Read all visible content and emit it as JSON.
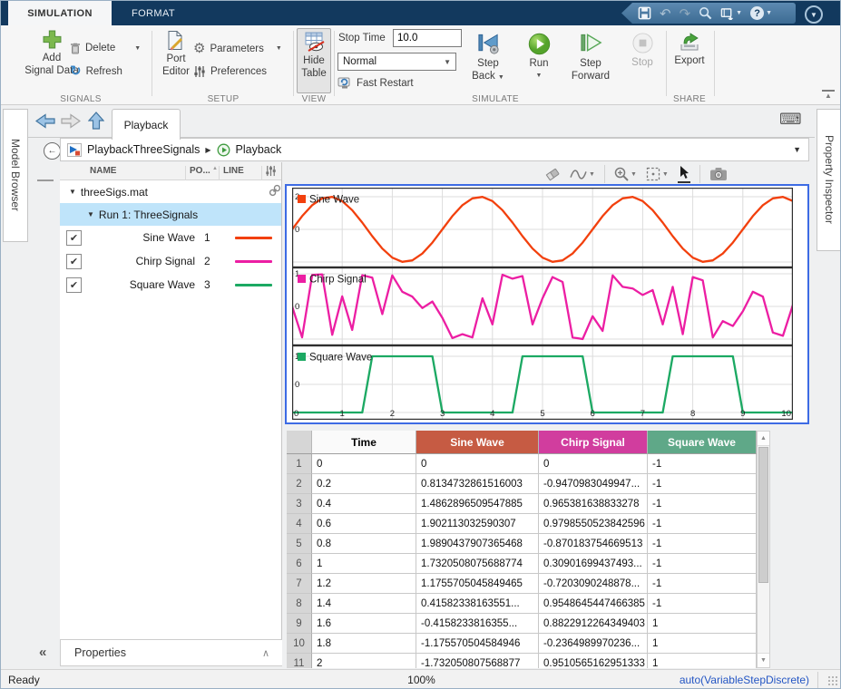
{
  "titlebar": {
    "tabs": [
      {
        "label": "SIMULATION",
        "active": true
      },
      {
        "label": "FORMAT",
        "active": false
      }
    ]
  },
  "icons": {
    "check": "✔",
    "caret_down": "▼",
    "caret_small": "▾",
    "sort_asc": "▲",
    "keyboard": "⌨",
    "undo": "↶",
    "redo": "↷",
    "refresh": "↻",
    "gear": "⚙",
    "back_arrow": "←",
    "collapse_left": "«",
    "chevron_up": "∧",
    "breadcrumb_sep": "▶",
    "help": "?",
    "ribbon_collapse": "▲",
    "scroll_up": "▲",
    "scroll_down": "▼",
    "tree_expanded": "▼"
  },
  "ribbon": {
    "signals": {
      "add_line1": "Add",
      "add_line2": "Signal Data",
      "delete_label": "Delete",
      "refresh_label": "Refresh",
      "group_label": "SIGNALS"
    },
    "setup": {
      "port_line1": "Port",
      "port_line2": "Editor",
      "parameters_label": "Parameters",
      "preferences_label": "Preferences",
      "group_label": "SETUP"
    },
    "view": {
      "hide_line1": "Hide",
      "hide_line2": "Table",
      "group_label": "VIEW"
    },
    "simulate": {
      "stop_time_label": "Stop Time",
      "stop_time_value": "10.0",
      "mode_value": "Normal",
      "fast_restart_label": "Fast Restart",
      "step_back_line1": "Step",
      "step_back_line2": "Back",
      "run_label": "Run",
      "step_forward_line1": "Step",
      "step_forward_line2": "Forward",
      "stop_label": "Stop",
      "group_label": "SIMULATE"
    },
    "share": {
      "export_label": "Export",
      "group_label": "SHARE"
    }
  },
  "side_tabs": {
    "left": "Model Browser",
    "right": "Property Inspector"
  },
  "document": {
    "tab": "Playback",
    "breadcrumb": {
      "model": "PlaybackThreeSignals",
      "view": "Playback"
    },
    "signal_panel": {
      "columns": [
        "NAME",
        "PO...",
        "LINE"
      ],
      "file": "threeSigs.mat",
      "run": "Run 1: ThreeSignals",
      "run_highlight": "#bfe4fa",
      "signals": [
        {
          "name": "Sine Wave",
          "port": "1",
          "color": "#f2400d",
          "checked": true
        },
        {
          "name": "Chirp Signal",
          "port": "2",
          "color": "#ec1ea3",
          "checked": true
        },
        {
          "name": "Square Wave",
          "port": "3",
          "color": "#1ca963",
          "checked": true
        }
      ],
      "properties_label": "Properties"
    },
    "table": {
      "columns": [
        {
          "label": "Time",
          "bg": "#fafafa",
          "fg": "#000000"
        },
        {
          "label": "Sine Wave",
          "bg": "#c65b43",
          "fg": "#ffffff"
        },
        {
          "label": "Chirp Signal",
          "bg": "#d13d9e",
          "fg": "#ffffff"
        },
        {
          "label": "Square Wave",
          "bg": "#5fa888",
          "fg": "#ffffff"
        }
      ],
      "rows": [
        [
          "1",
          "0",
          "0",
          "0",
          "-1"
        ],
        [
          "2",
          "0.2",
          "0.8134732861516003",
          "-0.9470983049947...",
          "-1"
        ],
        [
          "3",
          "0.4",
          "1.4862896509547885",
          "0.965381638833278",
          "-1"
        ],
        [
          "4",
          "0.6",
          "1.902113032590307",
          "0.9798550523842596",
          "-1"
        ],
        [
          "5",
          "0.8",
          "1.9890437907365468",
          "-0.870183754669513",
          "-1"
        ],
        [
          "6",
          "1",
          "1.7320508075688774",
          "0.30901699437493...",
          "-1"
        ],
        [
          "7",
          "1.2",
          "1.1755705045849465",
          "-0.7203090248878...",
          "-1"
        ],
        [
          "8",
          "1.4",
          "0.41582338163551...",
          "0.9548645447466385",
          "-1"
        ],
        [
          "9",
          "1.6",
          "-0.4158233816355...",
          "0.8822912264349403",
          "1"
        ],
        [
          "10",
          "1.8",
          "-1.175570504584946",
          "-0.2364989970236...",
          "1"
        ],
        [
          "11",
          "2",
          "-1.732050807568877",
          "0.9510565162951333",
          "1"
        ]
      ]
    }
  },
  "chart_data": [
    {
      "type": "line",
      "name": "Sine Wave",
      "color": "#f2400d",
      "x_start": 0,
      "x_step": 0.2,
      "x_end": 10,
      "yticks": [
        2,
        0
      ],
      "grid_y": [
        2,
        0,
        -2
      ],
      "xticks": null,
      "values": [
        0,
        0.813,
        1.486,
        1.902,
        1.989,
        1.732,
        1.176,
        0.416,
        -0.416,
        -1.176,
        -1.732,
        -1.989,
        -1.902,
        -1.486,
        -0.813,
        0,
        0.813,
        1.486,
        1.902,
        1.989,
        1.732,
        1.176,
        0.416,
        -0.416,
        -1.176,
        -1.732,
        -1.989,
        -1.902,
        -1.486,
        -0.813,
        0,
        0.813,
        1.486,
        1.902,
        1.989,
        1.732,
        1.176,
        0.416,
        -0.416,
        -1.176,
        -1.732,
        -1.989,
        -1.902,
        -1.486,
        -0.813,
        0,
        0.813,
        1.486,
        1.902,
        1.989,
        1.732
      ]
    },
    {
      "type": "line",
      "name": "Chirp Signal",
      "color": "#ec1ea3",
      "x_start": 0,
      "x_step": 0.2,
      "x_end": 10,
      "yticks": [
        1,
        0
      ],
      "grid_y": [
        1,
        0,
        -1
      ],
      "xticks": null,
      "values": [
        0,
        -0.947,
        0.965,
        0.98,
        -0.87,
        0.309,
        -0.72,
        0.955,
        0.882,
        -0.236,
        0.951,
        0.45,
        0.3,
        -0.05,
        0.15,
        -0.35,
        -0.97,
        -0.85,
        -0.95,
        0.25,
        -0.55,
        0.97,
        0.85,
        0.93,
        -0.55,
        0.25,
        0.9,
        0.75,
        -0.95,
        -1,
        -0.3,
        -0.75,
        0.95,
        0.6,
        0.55,
        0.35,
        0.5,
        -0.55,
        0.6,
        -0.85,
        0.9,
        0.8,
        -0.95,
        -0.45,
        -0.6,
        -0.15,
        0.45,
        0.3,
        -0.8,
        -0.9,
        0.05
      ]
    },
    {
      "type": "line",
      "name": "Square Wave",
      "color": "#1ca963",
      "x_start": 0,
      "x_step": 0.2,
      "x_end": 10,
      "yticks": [
        1,
        0
      ],
      "grid_y": [
        1,
        0,
        -1
      ],
      "xticks": [
        0,
        1,
        2,
        3,
        4,
        5,
        6,
        7,
        8,
        9,
        10
      ],
      "values": [
        -1,
        -1,
        -1,
        -1,
        -1,
        -1,
        -1,
        -1,
        1,
        1,
        1,
        1,
        1,
        1,
        1,
        -1,
        -1,
        -1,
        -1,
        -1,
        -1,
        -1,
        -1,
        1,
        1,
        1,
        1,
        1,
        1,
        1,
        -1,
        -1,
        -1,
        -1,
        -1,
        -1,
        -1,
        -1,
        1,
        1,
        1,
        1,
        1,
        1,
        1,
        -1,
        -1,
        -1,
        -1,
        -1,
        -1
      ]
    }
  ],
  "statusbar": {
    "left": "Ready",
    "zoom": "100%",
    "right": "auto(VariableStepDiscrete)"
  }
}
